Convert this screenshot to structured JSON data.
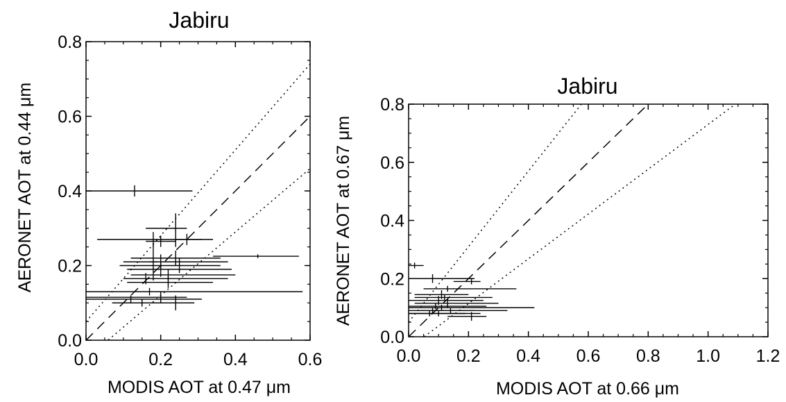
{
  "chart_data": [
    {
      "type": "scatter",
      "title": "Jabiru",
      "xlabel": "MODIS AOT at 0.47 μm",
      "ylabel": "AERONET AOT at 0.44 μm",
      "xlim": [
        0.0,
        0.6
      ],
      "ylim": [
        0.0,
        0.8
      ],
      "xticks": [
        "0.0",
        "0.2",
        "0.4",
        "0.6"
      ],
      "yticks": [
        "0.0",
        "0.2",
        "0.4",
        "0.6",
        "0.8"
      ],
      "xtick_values": [
        0.0,
        0.2,
        0.4,
        0.6
      ],
      "ytick_values": [
        0.0,
        0.2,
        0.4,
        0.6,
        0.8
      ],
      "grid": false,
      "reference_lines": [
        {
          "style": "dashed",
          "slope": 1.0,
          "intercept": 0.0
        },
        {
          "style": "dotted",
          "slope": 1.15,
          "intercept": 0.05
        },
        {
          "style": "dotted",
          "slope": 0.85,
          "intercept": -0.05
        }
      ],
      "points": [
        {
          "x": 0.13,
          "y": 0.4,
          "xerr": [
            0.0,
            0.285
          ],
          "yerr": [
            0.385,
            0.415
          ]
        },
        {
          "x": 0.24,
          "y": 0.3,
          "xerr": [
            0.16,
            0.27
          ],
          "yerr": [
            0.25,
            0.34
          ]
        },
        {
          "x": 0.27,
          "y": 0.27,
          "xerr": [
            0.24,
            0.31
          ],
          "yerr": [
            0.255,
            0.285
          ]
        },
        {
          "x": 0.18,
          "y": 0.27,
          "xerr": [
            0.03,
            0.34
          ],
          "yerr": [
            0.25,
            0.29
          ]
        },
        {
          "x": 0.2,
          "y": 0.265,
          "xerr": [
            0.16,
            0.24
          ],
          "yerr": [
            0.25,
            0.28
          ]
        },
        {
          "x": 0.18,
          "y": 0.21,
          "xerr": [
            0.17,
            0.19
          ],
          "yerr": [
            0.16,
            0.26
          ]
        },
        {
          "x": 0.46,
          "y": 0.225,
          "xerr": [
            0.34,
            0.57
          ],
          "yerr": [
            0.22,
            0.23
          ]
        },
        {
          "x": 0.24,
          "y": 0.22,
          "xerr": [
            0.12,
            0.36
          ],
          "yerr": [
            0.2,
            0.24
          ]
        },
        {
          "x": 0.2,
          "y": 0.21,
          "xerr": [
            0.1,
            0.38
          ],
          "yerr": [
            0.19,
            0.23
          ]
        },
        {
          "x": 0.25,
          "y": 0.2,
          "xerr": [
            0.09,
            0.36
          ],
          "yerr": [
            0.18,
            0.22
          ]
        },
        {
          "x": 0.2,
          "y": 0.19,
          "xerr": [
            0.11,
            0.39
          ],
          "yerr": [
            0.17,
            0.21
          ]
        },
        {
          "x": 0.22,
          "y": 0.175,
          "xerr": [
            0.12,
            0.4
          ],
          "yerr": [
            0.16,
            0.19
          ]
        },
        {
          "x": 0.16,
          "y": 0.165,
          "xerr": [
            0.1,
            0.38
          ],
          "yerr": [
            0.15,
            0.18
          ]
        },
        {
          "x": 0.22,
          "y": 0.155,
          "xerr": [
            0.11,
            0.34
          ],
          "yerr": [
            0.14,
            0.17
          ]
        },
        {
          "x": 0.17,
          "y": 0.13,
          "xerr": [
            0.0,
            0.58
          ],
          "yerr": [
            0.12,
            0.14
          ]
        },
        {
          "x": 0.12,
          "y": 0.11,
          "xerr": [
            0.0,
            0.31
          ],
          "yerr": [
            0.1,
            0.12
          ]
        },
        {
          "x": 0.2,
          "y": 0.115,
          "xerr": [
            0.0,
            0.27
          ],
          "yerr": [
            0.1,
            0.13
          ]
        },
        {
          "x": 0.15,
          "y": 0.1,
          "xerr": [
            0.07,
            0.25
          ],
          "yerr": [
            0.09,
            0.11
          ]
        },
        {
          "x": 0.24,
          "y": 0.1,
          "xerr": [
            0.15,
            0.29
          ],
          "yerr": [
            0.08,
            0.12
          ]
        }
      ]
    },
    {
      "type": "scatter",
      "title": "Jabiru",
      "xlabel": "MODIS AOT at 0.66 μm",
      "ylabel": "AERONET AOT at 0.67 μm",
      "xlim": [
        0.0,
        1.2
      ],
      "ylim": [
        0.0,
        0.8
      ],
      "xticks": [
        "0.0",
        "0.2",
        "0.4",
        "0.6",
        "0.8",
        "1.0",
        "1.2"
      ],
      "yticks": [
        "0.0",
        "0.2",
        "0.4",
        "0.6",
        "0.8"
      ],
      "xtick_values": [
        0.0,
        0.2,
        0.4,
        0.6,
        0.8,
        1.0,
        1.2
      ],
      "ytick_values": [
        0.0,
        0.2,
        0.4,
        0.6,
        0.8
      ],
      "grid": false,
      "reference_lines": [
        {
          "style": "dashed",
          "slope": 1.0,
          "intercept": 0.0
        },
        {
          "style": "dotted",
          "slope": 1.3,
          "intercept": 0.05
        },
        {
          "style": "dotted",
          "slope": 0.77,
          "intercept": -0.04
        }
      ],
      "points": [
        {
          "x": 0.02,
          "y": 0.245,
          "xerr": [
            0.0,
            0.05
          ],
          "yerr": [
            0.235,
            0.255
          ]
        },
        {
          "x": 0.08,
          "y": 0.2,
          "xerr": [
            0.0,
            0.22
          ],
          "yerr": [
            0.185,
            0.215
          ]
        },
        {
          "x": 0.21,
          "y": 0.19,
          "xerr": [
            0.15,
            0.24
          ],
          "yerr": [
            0.18,
            0.2
          ]
        },
        {
          "x": 0.13,
          "y": 0.165,
          "xerr": [
            0.05,
            0.36
          ],
          "yerr": [
            0.155,
            0.175
          ]
        },
        {
          "x": 0.11,
          "y": 0.145,
          "xerr": [
            0.02,
            0.2
          ],
          "yerr": [
            0.13,
            0.16
          ]
        },
        {
          "x": 0.12,
          "y": 0.135,
          "xerr": [
            0.02,
            0.28
          ],
          "yerr": [
            0.125,
            0.145
          ]
        },
        {
          "x": 0.1,
          "y": 0.125,
          "xerr": [
            0.0,
            0.25
          ],
          "yerr": [
            0.11,
            0.14
          ]
        },
        {
          "x": 0.13,
          "y": 0.115,
          "xerr": [
            0.02,
            0.3
          ],
          "yerr": [
            0.1,
            0.13
          ]
        },
        {
          "x": 0.09,
          "y": 0.105,
          "xerr": [
            0.0,
            0.26
          ],
          "yerr": [
            0.095,
            0.115
          ]
        },
        {
          "x": 0.11,
          "y": 0.1,
          "xerr": [
            0.0,
            0.42
          ],
          "yerr": [
            0.09,
            0.11
          ]
        },
        {
          "x": 0.08,
          "y": 0.09,
          "xerr": [
            0.0,
            0.22
          ],
          "yerr": [
            0.08,
            0.1
          ]
        },
        {
          "x": 0.14,
          "y": 0.09,
          "xerr": [
            0.04,
            0.33
          ],
          "yerr": [
            0.08,
            0.1
          ]
        },
        {
          "x": 0.07,
          "y": 0.08,
          "xerr": [
            0.0,
            0.19
          ],
          "yerr": [
            0.07,
            0.09
          ]
        },
        {
          "x": 0.1,
          "y": 0.08,
          "xerr": [
            0.0,
            0.24
          ],
          "yerr": [
            0.07,
            0.09
          ]
        },
        {
          "x": 0.21,
          "y": 0.07,
          "xerr": [
            0.13,
            0.26
          ],
          "yerr": [
            0.055,
            0.085
          ]
        }
      ]
    }
  ]
}
